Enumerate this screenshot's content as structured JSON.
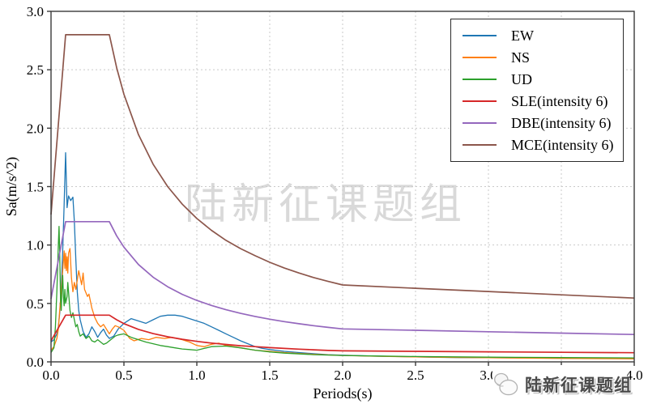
{
  "watermarks": {
    "center_text": "陆新征课题组",
    "corner_text": "陆新征课题组",
    "logo_icon": "sketch-blob-logo"
  },
  "colors": {
    "grid": "#c9c9c9",
    "axis_frame": "#3a3a3a",
    "background": "#ffffff",
    "watermark_center": "#d9d9d9",
    "watermark_corner": "#4b4b4b"
  },
  "chart_data": {
    "type": "line",
    "title": "",
    "xlabel": "Periods(s)",
    "ylabel": "Sa(m/s^2)",
    "xlim": [
      0.0,
      4.0
    ],
    "ylim": [
      0.0,
      3.0
    ],
    "xticks": [
      0.0,
      0.5,
      1.0,
      1.5,
      2.0,
      2.5,
      3.0,
      3.5,
      4.0
    ],
    "yticks": [
      0.0,
      0.5,
      1.0,
      1.5,
      2.0,
      2.5,
      3.0
    ],
    "tick_format": "0.1f",
    "grid": "dashed-both",
    "legend_position": "upper-right",
    "series": [
      {
        "name": "EW",
        "color": "#1f77b4",
        "width": 1.3,
        "points": [
          [
            0,
            0.17
          ],
          [
            0.02,
            0.19
          ],
          [
            0.04,
            0.24
          ],
          [
            0.05,
            0.3
          ],
          [
            0.06,
            0.42
          ],
          [
            0.07,
            0.62
          ],
          [
            0.08,
            0.95
          ],
          [
            0.09,
            1.35
          ],
          [
            0.1,
            1.79
          ],
          [
            0.11,
            1.32
          ],
          [
            0.12,
            1.42
          ],
          [
            0.135,
            1.38
          ],
          [
            0.15,
            1.41
          ],
          [
            0.16,
            1.2
          ],
          [
            0.17,
            0.88
          ],
          [
            0.18,
            0.6
          ],
          [
            0.19,
            0.44
          ],
          [
            0.2,
            0.36
          ],
          [
            0.22,
            0.26
          ],
          [
            0.24,
            0.21
          ],
          [
            0.26,
            0.24
          ],
          [
            0.28,
            0.3
          ],
          [
            0.3,
            0.26
          ],
          [
            0.32,
            0.21
          ],
          [
            0.34,
            0.25
          ],
          [
            0.36,
            0.28
          ],
          [
            0.38,
            0.23
          ],
          [
            0.4,
            0.2
          ],
          [
            0.43,
            0.22
          ],
          [
            0.46,
            0.28
          ],
          [
            0.5,
            0.33
          ],
          [
            0.55,
            0.37
          ],
          [
            0.6,
            0.35
          ],
          [
            0.65,
            0.33
          ],
          [
            0.7,
            0.36
          ],
          [
            0.75,
            0.39
          ],
          [
            0.8,
            0.4
          ],
          [
            0.85,
            0.4
          ],
          [
            0.9,
            0.39
          ],
          [
            0.95,
            0.37
          ],
          [
            1.0,
            0.35
          ],
          [
            1.05,
            0.33
          ],
          [
            1.1,
            0.3
          ],
          [
            1.15,
            0.27
          ],
          [
            1.2,
            0.24
          ],
          [
            1.25,
            0.21
          ],
          [
            1.3,
            0.18
          ],
          [
            1.35,
            0.155
          ],
          [
            1.4,
            0.13
          ],
          [
            1.45,
            0.115
          ],
          [
            1.5,
            0.105
          ],
          [
            1.6,
            0.09
          ],
          [
            1.7,
            0.08
          ],
          [
            1.8,
            0.07
          ],
          [
            1.9,
            0.062
          ],
          [
            2.0,
            0.057
          ],
          [
            2.2,
            0.05
          ],
          [
            2.4,
            0.045
          ],
          [
            2.6,
            0.04
          ],
          [
            2.8,
            0.037
          ],
          [
            3.0,
            0.035
          ],
          [
            3.25,
            0.033
          ],
          [
            3.5,
            0.031
          ],
          [
            3.75,
            0.029
          ],
          [
            4.0,
            0.028
          ]
        ]
      },
      {
        "name": "NS",
        "color": "#ff7f0e",
        "width": 1.3,
        "points": [
          [
            0,
            0.1
          ],
          [
            0.02,
            0.13
          ],
          [
            0.04,
            0.2
          ],
          [
            0.05,
            0.28
          ],
          [
            0.06,
            0.45
          ],
          [
            0.07,
            0.6
          ],
          [
            0.08,
            0.78
          ],
          [
            0.09,
            0.95
          ],
          [
            0.095,
            0.8
          ],
          [
            0.1,
            0.93
          ],
          [
            0.105,
            0.78
          ],
          [
            0.11,
            0.9
          ],
          [
            0.115,
            0.76
          ],
          [
            0.12,
            0.93
          ],
          [
            0.13,
            0.97
          ],
          [
            0.14,
            0.72
          ],
          [
            0.15,
            0.6
          ],
          [
            0.16,
            0.68
          ],
          [
            0.17,
            0.62
          ],
          [
            0.18,
            0.7
          ],
          [
            0.19,
            0.78
          ],
          [
            0.2,
            0.72
          ],
          [
            0.21,
            0.66
          ],
          [
            0.22,
            0.76
          ],
          [
            0.23,
            0.62
          ],
          [
            0.25,
            0.56
          ],
          [
            0.26,
            0.58
          ],
          [
            0.28,
            0.46
          ],
          [
            0.3,
            0.38
          ],
          [
            0.32,
            0.33
          ],
          [
            0.34,
            0.3
          ],
          [
            0.36,
            0.32
          ],
          [
            0.38,
            0.28
          ],
          [
            0.4,
            0.24
          ],
          [
            0.42,
            0.28
          ],
          [
            0.44,
            0.31
          ],
          [
            0.46,
            0.3
          ],
          [
            0.5,
            0.27
          ],
          [
            0.54,
            0.2
          ],
          [
            0.57,
            0.18
          ],
          [
            0.62,
            0.2
          ],
          [
            0.67,
            0.19
          ],
          [
            0.72,
            0.21
          ],
          [
            0.78,
            0.2
          ],
          [
            0.83,
            0.21
          ],
          [
            0.9,
            0.19
          ],
          [
            0.95,
            0.17
          ],
          [
            1.0,
            0.14
          ],
          [
            1.05,
            0.13
          ],
          [
            1.1,
            0.15
          ],
          [
            1.15,
            0.16
          ],
          [
            1.2,
            0.14
          ],
          [
            1.3,
            0.12
          ],
          [
            1.4,
            0.1
          ],
          [
            1.5,
            0.09
          ],
          [
            1.6,
            0.08
          ],
          [
            1.7,
            0.072
          ],
          [
            1.8,
            0.065
          ],
          [
            2.0,
            0.055
          ],
          [
            2.25,
            0.048
          ],
          [
            2.5,
            0.042
          ],
          [
            2.75,
            0.038
          ],
          [
            3.0,
            0.035
          ],
          [
            3.25,
            0.032
          ],
          [
            3.5,
            0.03
          ],
          [
            3.75,
            0.028
          ],
          [
            4.0,
            0.026
          ]
        ]
      },
      {
        "name": "UD",
        "color": "#2ca02c",
        "width": 1.3,
        "points": [
          [
            0,
            0.08
          ],
          [
            0.02,
            0.12
          ],
          [
            0.03,
            0.3
          ],
          [
            0.04,
            0.6
          ],
          [
            0.05,
            1.0
          ],
          [
            0.055,
            1.16
          ],
          [
            0.06,
            0.9
          ],
          [
            0.065,
            0.55
          ],
          [
            0.07,
            0.44
          ],
          [
            0.075,
            0.62
          ],
          [
            0.08,
            0.74
          ],
          [
            0.085,
            0.56
          ],
          [
            0.09,
            0.48
          ],
          [
            0.095,
            0.62
          ],
          [
            0.1,
            0.5
          ],
          [
            0.11,
            0.56
          ],
          [
            0.115,
            0.68
          ],
          [
            0.12,
            0.6
          ],
          [
            0.13,
            0.44
          ],
          [
            0.14,
            0.38
          ],
          [
            0.15,
            0.42
          ],
          [
            0.16,
            0.36
          ],
          [
            0.17,
            0.3
          ],
          [
            0.18,
            0.32
          ],
          [
            0.19,
            0.26
          ],
          [
            0.2,
            0.22
          ],
          [
            0.22,
            0.24
          ],
          [
            0.24,
            0.2
          ],
          [
            0.26,
            0.22
          ],
          [
            0.28,
            0.18
          ],
          [
            0.3,
            0.17
          ],
          [
            0.32,
            0.19
          ],
          [
            0.34,
            0.17
          ],
          [
            0.36,
            0.15
          ],
          [
            0.38,
            0.16
          ],
          [
            0.4,
            0.18
          ],
          [
            0.42,
            0.2
          ],
          [
            0.44,
            0.22
          ],
          [
            0.46,
            0.23
          ],
          [
            0.5,
            0.24
          ],
          [
            0.55,
            0.21
          ],
          [
            0.6,
            0.19
          ],
          [
            0.65,
            0.17
          ],
          [
            0.7,
            0.155
          ],
          [
            0.75,
            0.14
          ],
          [
            0.8,
            0.13
          ],
          [
            0.85,
            0.12
          ],
          [
            0.9,
            0.11
          ],
          [
            0.95,
            0.105
          ],
          [
            1.0,
            0.1
          ],
          [
            1.05,
            0.115
          ],
          [
            1.1,
            0.13
          ],
          [
            1.2,
            0.135
          ],
          [
            1.3,
            0.12
          ],
          [
            1.4,
            0.1
          ],
          [
            1.5,
            0.085
          ],
          [
            1.6,
            0.075
          ],
          [
            1.8,
            0.062
          ],
          [
            2.0,
            0.055
          ],
          [
            2.25,
            0.05
          ],
          [
            2.5,
            0.046
          ],
          [
            2.75,
            0.043
          ],
          [
            3.0,
            0.04
          ],
          [
            3.5,
            0.037
          ],
          [
            4.0,
            0.034
          ]
        ]
      },
      {
        "name": "SLE(intensity 6)",
        "color": "#d62728",
        "width": 1.7,
        "points": [
          [
            0,
            0.18
          ],
          [
            0.1,
            0.4
          ],
          [
            0.4,
            0.4
          ],
          [
            0.45,
            0.36
          ],
          [
            0.5,
            0.327
          ],
          [
            0.6,
            0.278
          ],
          [
            0.7,
            0.242
          ],
          [
            0.8,
            0.215
          ],
          [
            0.9,
            0.193
          ],
          [
            1.0,
            0.175
          ],
          [
            1.1,
            0.161
          ],
          [
            1.2,
            0.149
          ],
          [
            1.3,
            0.138
          ],
          [
            1.4,
            0.13
          ],
          [
            1.5,
            0.122
          ],
          [
            1.6,
            0.115
          ],
          [
            1.7,
            0.109
          ],
          [
            1.8,
            0.103
          ],
          [
            1.9,
            0.098
          ],
          [
            2.0,
            0.094
          ],
          [
            2.5,
            0.09
          ],
          [
            3.0,
            0.086
          ],
          [
            3.5,
            0.082
          ],
          [
            4.0,
            0.078
          ]
        ]
      },
      {
        "name": "DBE(intensity 6)",
        "color": "#9467bd",
        "width": 1.7,
        "points": [
          [
            0,
            0.54
          ],
          [
            0.1,
            1.2
          ],
          [
            0.4,
            1.2
          ],
          [
            0.45,
            1.079
          ],
          [
            0.5,
            0.982
          ],
          [
            0.6,
            0.833
          ],
          [
            0.7,
            0.725
          ],
          [
            0.8,
            0.643
          ],
          [
            0.9,
            0.578
          ],
          [
            1.0,
            0.526
          ],
          [
            1.1,
            0.483
          ],
          [
            1.2,
            0.446
          ],
          [
            1.3,
            0.415
          ],
          [
            1.4,
            0.389
          ],
          [
            1.5,
            0.365
          ],
          [
            1.6,
            0.344
          ],
          [
            1.7,
            0.326
          ],
          [
            1.8,
            0.31
          ],
          [
            1.9,
            0.295
          ],
          [
            2.0,
            0.282
          ],
          [
            2.5,
            0.27
          ],
          [
            3.0,
            0.258
          ],
          [
            3.5,
            0.246
          ],
          [
            4.0,
            0.234
          ]
        ]
      },
      {
        "name": "MCE(intensity 6)",
        "color": "#8c564b",
        "width": 1.7,
        "points": [
          [
            0,
            1.26
          ],
          [
            0.1,
            2.8
          ],
          [
            0.4,
            2.8
          ],
          [
            0.45,
            2.518
          ],
          [
            0.5,
            2.29
          ],
          [
            0.6,
            1.944
          ],
          [
            0.7,
            1.692
          ],
          [
            0.8,
            1.5
          ],
          [
            0.9,
            1.35
          ],
          [
            1.0,
            1.227
          ],
          [
            1.1,
            1.126
          ],
          [
            1.2,
            1.04
          ],
          [
            1.3,
            0.969
          ],
          [
            1.4,
            0.908
          ],
          [
            1.5,
            0.852
          ],
          [
            1.6,
            0.803
          ],
          [
            1.7,
            0.761
          ],
          [
            1.8,
            0.722
          ],
          [
            1.9,
            0.689
          ],
          [
            2.0,
            0.658
          ],
          [
            2.5,
            0.63
          ],
          [
            3.0,
            0.602
          ],
          [
            3.5,
            0.574
          ],
          [
            4.0,
            0.546
          ]
        ]
      }
    ]
  }
}
